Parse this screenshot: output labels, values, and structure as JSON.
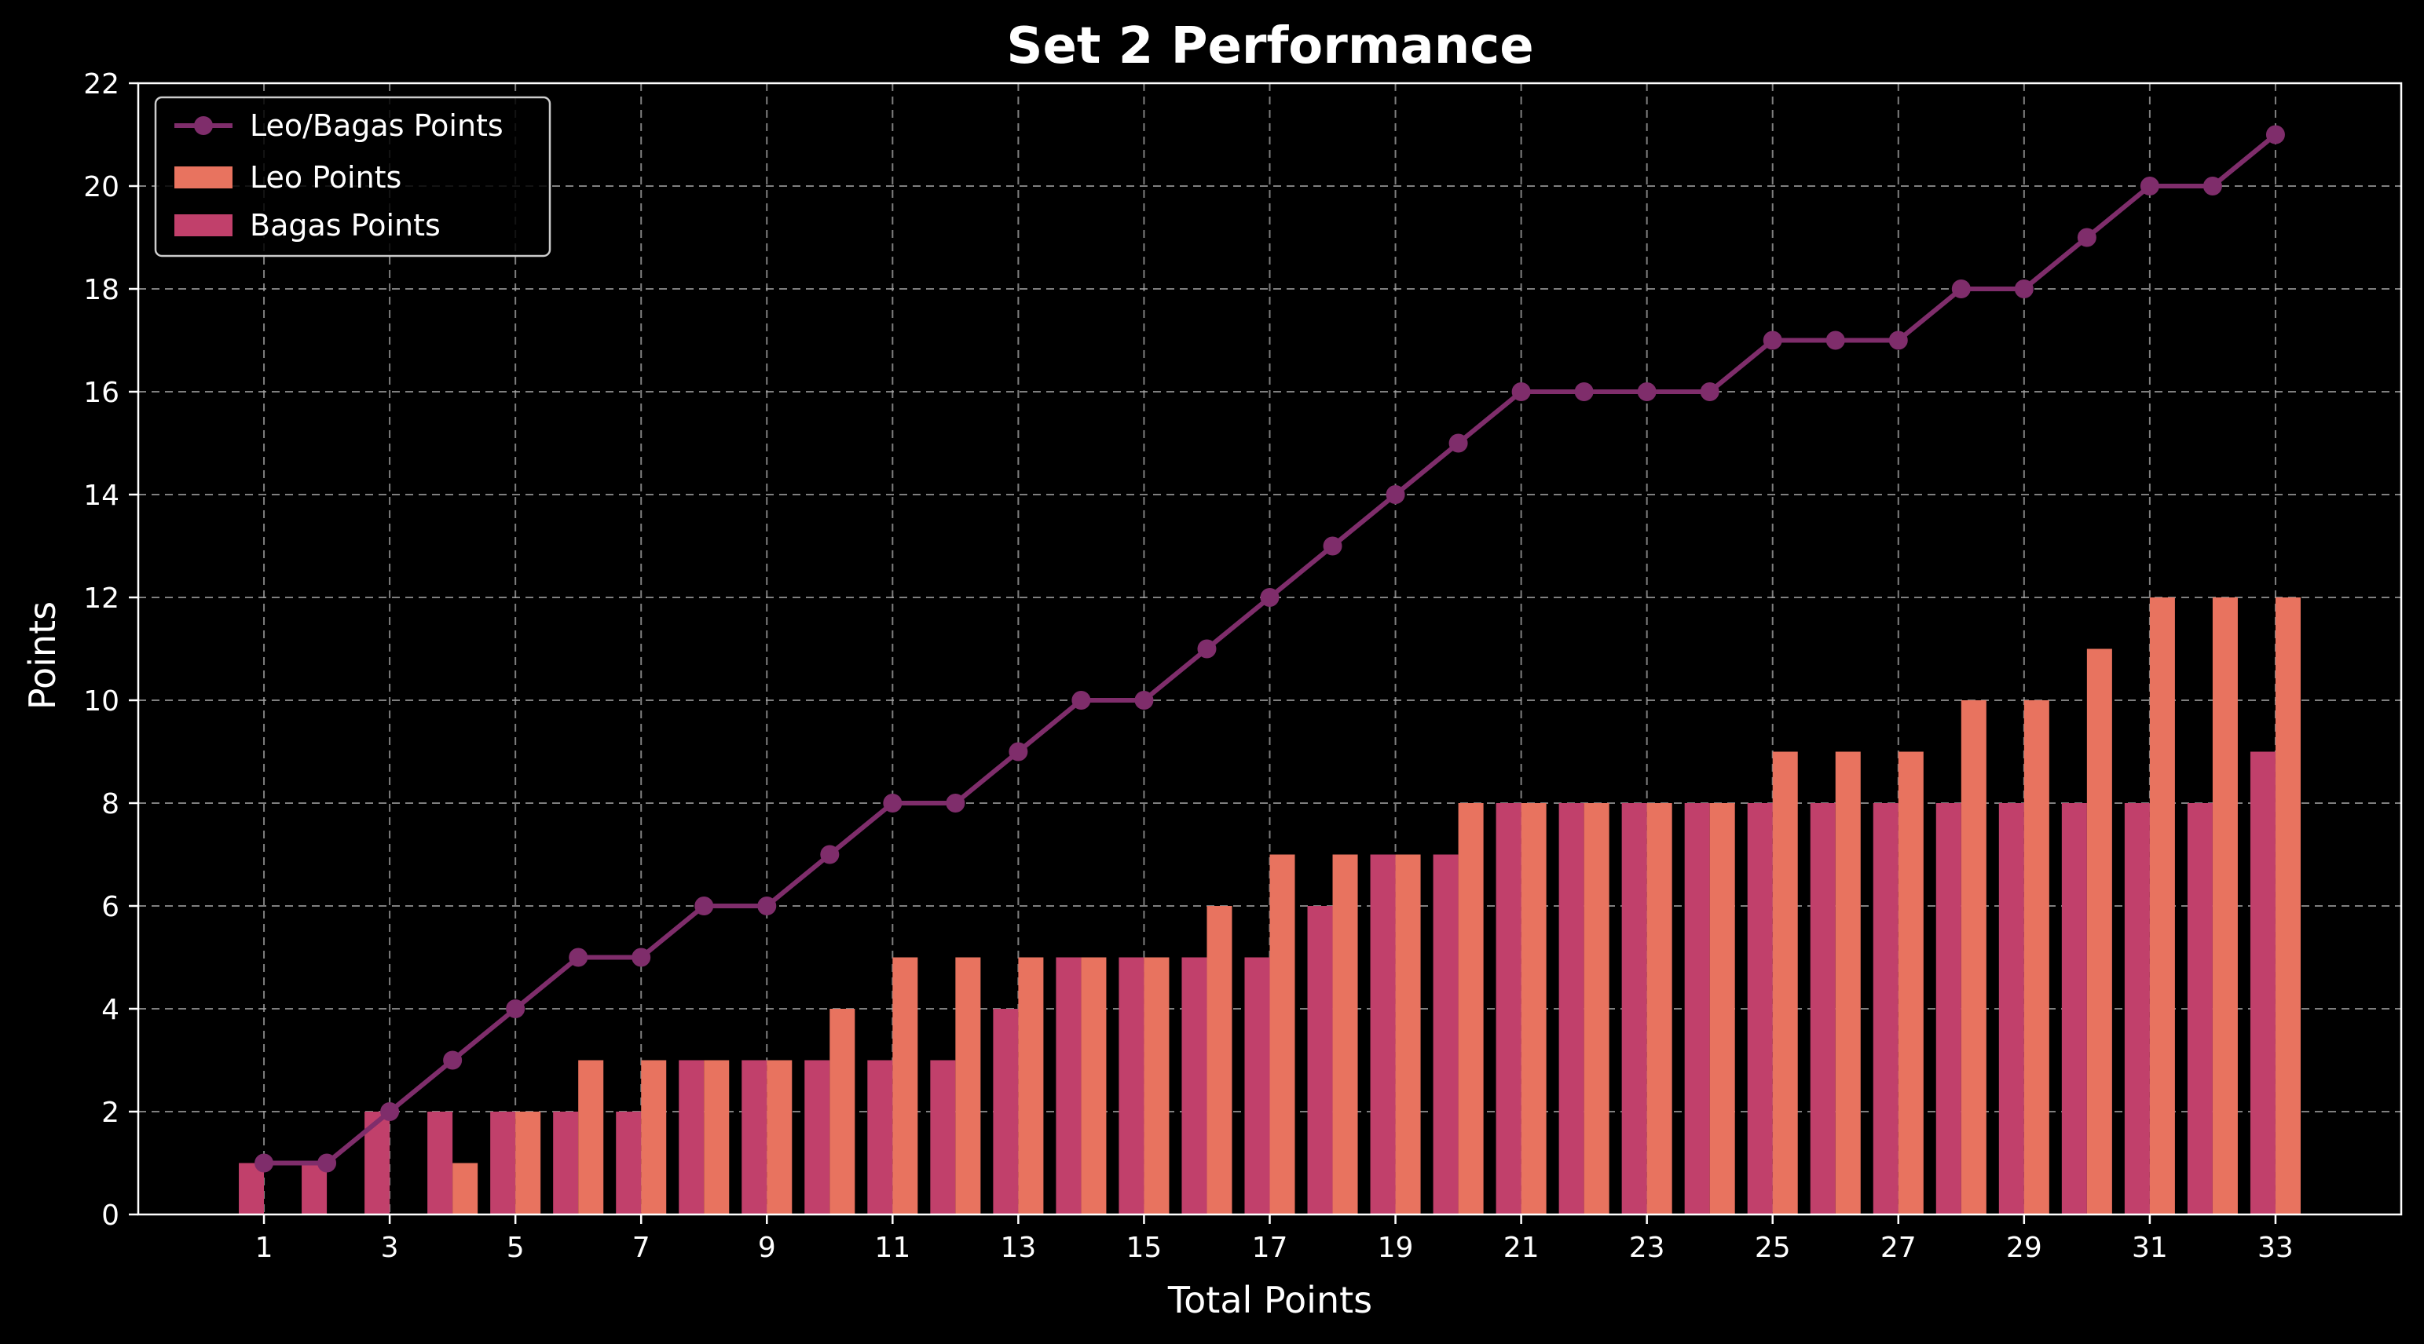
{
  "chart_data": {
    "type": "bar",
    "title": "Set 2 Performance",
    "xlabel": "Total Points",
    "ylabel": "Points",
    "x": [
      1,
      2,
      3,
      4,
      5,
      6,
      7,
      8,
      9,
      10,
      11,
      12,
      13,
      14,
      15,
      16,
      17,
      18,
      19,
      20,
      21,
      22,
      23,
      24,
      25,
      26,
      27,
      28,
      29,
      30,
      31,
      32,
      33
    ],
    "xticks": [
      1,
      3,
      5,
      7,
      9,
      11,
      13,
      15,
      17,
      19,
      21,
      23,
      25,
      27,
      29,
      31,
      33
    ],
    "yticks": [
      0,
      2,
      4,
      6,
      8,
      10,
      12,
      14,
      16,
      18,
      20,
      22
    ],
    "xlim": [
      -1,
      35
    ],
    "ylim": [
      0,
      22
    ],
    "grid": true,
    "legend_position": "top-left",
    "series": [
      {
        "name": "Leo/Bagas Points",
        "kind": "line",
        "color": "#7f2d6b",
        "values": [
          1,
          1,
          2,
          3,
          4,
          5,
          5,
          6,
          6,
          7,
          8,
          8,
          9,
          10,
          10,
          11,
          12,
          13,
          14,
          15,
          16,
          16,
          16,
          16,
          17,
          17,
          17,
          18,
          18,
          19,
          20,
          20,
          21
        ]
      },
      {
        "name": "Leo Points",
        "kind": "bar",
        "color": "#e8735f",
        "values": [
          0,
          0,
          0,
          1,
          2,
          3,
          3,
          3,
          3,
          4,
          5,
          5,
          5,
          5,
          5,
          6,
          7,
          7,
          7,
          8,
          8,
          8,
          8,
          8,
          9,
          9,
          9,
          10,
          10,
          11,
          12,
          12,
          12
        ]
      },
      {
        "name": "Bagas Points",
        "kind": "bar",
        "color": "#c1406b",
        "values": [
          1,
          1,
          2,
          2,
          2,
          2,
          2,
          3,
          3,
          3,
          3,
          3,
          4,
          5,
          5,
          5,
          5,
          6,
          7,
          7,
          8,
          8,
          8,
          8,
          8,
          8,
          8,
          8,
          8,
          8,
          8,
          8,
          9
        ]
      }
    ]
  }
}
